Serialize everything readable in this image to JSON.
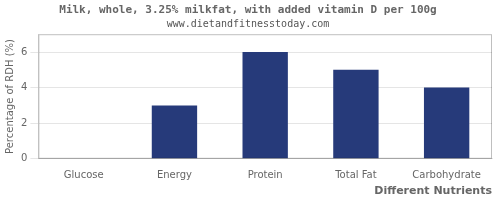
{
  "chart_data": {
    "type": "bar",
    "title": "Milk, whole, 3.25% milkfat, with added vitamin D per 100g",
    "subtitle": "www.dietandfitnesstoday.com",
    "categories": [
      "Glucose",
      "Energy",
      "Protein",
      "Total Fat",
      "Carbohydrate"
    ],
    "values": [
      0,
      3,
      6,
      5,
      4
    ],
    "color": "#263a7a",
    "xlabel": "Different Nutrients",
    "ylabel": "Percentage of RDH (%)",
    "ylim": [
      0,
      7
    ],
    "yticks": [
      0,
      2,
      4,
      6
    ],
    "grid": true
  }
}
